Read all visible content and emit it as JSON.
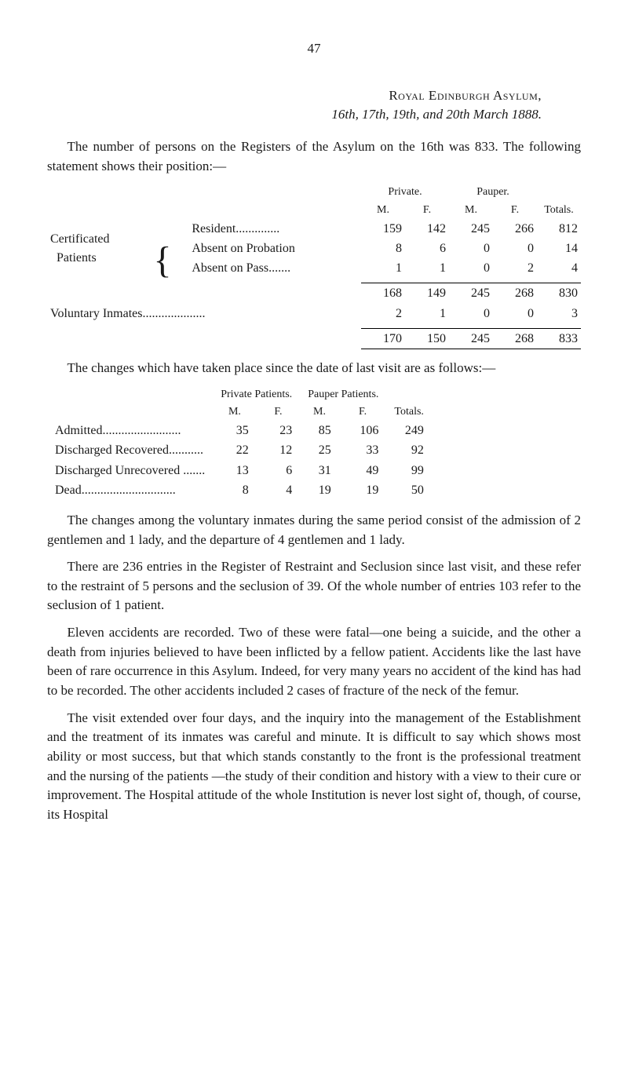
{
  "page_number": "47",
  "heading": {
    "asylum": "Royal Edinburgh Asylum,",
    "date_line": "16th, 17th, 19th, and 20th March 1888."
  },
  "intro_para": "The number of persons on the Registers of the Asylum on the 16th was 833. The following statement shows their position:—",
  "table1": {
    "group_headers": {
      "private": "Private.",
      "pauper": "Pauper."
    },
    "col_headers": {
      "m": "M.",
      "f": "F.",
      "totals": "Totals."
    },
    "side_label_top": "Certificated",
    "side_label_bottom": "Patients",
    "rows": [
      {
        "label": "Resident..............",
        "pm": "159",
        "pf": "142",
        "pam": "245",
        "paf": "266",
        "tot": "812"
      },
      {
        "label": "Absent on Probation",
        "pm": "8",
        "pf": "6",
        "pam": "0",
        "paf": "0",
        "tot": "14"
      },
      {
        "label": "Absent on Pass.......",
        "pm": "1",
        "pf": "1",
        "pam": "0",
        "paf": "2",
        "tot": "4"
      }
    ],
    "subtotal": {
      "pm": "168",
      "pf": "149",
      "pam": "245",
      "paf": "268",
      "tot": "830"
    },
    "voluntary": {
      "label": "Voluntary Inmates....................",
      "pm": "2",
      "pf": "1",
      "pam": "0",
      "paf": "0",
      "tot": "3"
    },
    "grand": {
      "pm": "170",
      "pf": "150",
      "pam": "245",
      "paf": "268",
      "tot": "833"
    }
  },
  "changes_para": "The changes which have taken place since the date of last visit are as follows:—",
  "table2": {
    "group_headers": {
      "private": "Private Patients.",
      "pauper": "Pauper Patients."
    },
    "col_headers": {
      "m": "M.",
      "f": "F.",
      "totals": "Totals."
    },
    "rows": [
      {
        "label": "Admitted.........................",
        "pm": "35",
        "pf": "23",
        "pam": "85",
        "paf": "106",
        "tot": "249"
      },
      {
        "label": "Discharged Recovered...........",
        "pm": "22",
        "pf": "12",
        "pam": "25",
        "paf": "33",
        "tot": "92"
      },
      {
        "label": "Discharged Unrecovered .......",
        "pm": "13",
        "pf": "6",
        "pam": "31",
        "paf": "49",
        "tot": "99"
      },
      {
        "label": "Dead..............................",
        "pm": "8",
        "pf": "4",
        "pam": "19",
        "paf": "19",
        "tot": "50"
      }
    ]
  },
  "para3": "The changes among the voluntary inmates during the same period consist of the admission of 2 gentlemen and 1 lady, and the departure of 4 gentlemen and 1 lady.",
  "para4": "There are 236 entries in the Register of Restraint and Seclu­sion since last visit, and these refer to the restraint of 5 persons and the seclusion of 39. Of the whole number of entries 103 refer to the seclusion of 1 patient.",
  "para5": "Eleven accidents are recorded. Two of these were fatal—one being a suicide, and the other a death from injuries believed to have been inflicted by a fellow patient. Accidents like the last have been of rare occurrence in this Asylum. Indeed, for very many years no accident of the kind has had to be recorded. The other accidents included 2 cases of fracture of the neck of the femur.",
  "para6": "The visit extended over four days, and the inquiry into the management of the Establishment and the treatment of its inmates was careful and minute. It is difficult to say which shows most ability or most success, but that which stands constantly to the front is the professional treatment and the nursing of the patients —the study of their condition and history with a view to their cure or improvement. The Hospital attitude of the whole Insti­tution is never lost sight of, though, of course, its Hospital"
}
